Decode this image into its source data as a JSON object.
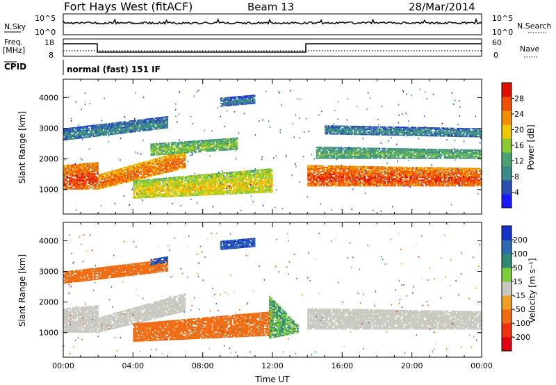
{
  "header": {
    "title": "Fort Hays West (fitACF)",
    "beam": "Beam 13",
    "date": "28/Mar/2014"
  },
  "status_panels": {
    "nsky_label": "N.Sky",
    "nsearch_label": "N.Search",
    "noise_ticks_top": "10^5",
    "noise_ticks_bottom": "10^0",
    "freq_label_1": "Freq.",
    "freq_label_2": "[MHz]",
    "freq_ticks": [
      "18",
      "8"
    ],
    "nave_label": "Nave",
    "nave_ticks": [
      "60",
      "0"
    ],
    "cpid_label": "CPID",
    "cpid_text": "normal (fast) 151 IF"
  },
  "colors": {
    "power_scale": [
      "#1a1aff",
      "#2850b4",
      "#3a8a8a",
      "#4aa070",
      "#8acc30",
      "#f0c800",
      "#f09000",
      "#f05000",
      "#e01000"
    ],
    "velocity_scale": [
      "#1432c8",
      "#2a6ab0",
      "#2e8a70",
      "#7ccc3c",
      "#c8c8c0",
      "#f0a020",
      "#f06a10",
      "#f03010",
      "#e00010"
    ]
  },
  "chart_data": [
    {
      "type": "heatmap",
      "name": "power",
      "ylabel": "Slant Range [km]",
      "yticks": [
        "4000",
        "3000",
        "2000",
        "1000"
      ],
      "ylim": [
        200,
        4600
      ],
      "xlim_hours": [
        0,
        24
      ],
      "colorbar_label": "Power [dB]",
      "colorbar_ticks": [
        "28",
        "24",
        "20",
        "16",
        "12",
        "8",
        "4"
      ],
      "colorbar_range": [
        0,
        32
      ],
      "bands": [
        {
          "hours": [
            0,
            2
          ],
          "range_lo": [
            1000,
            1000
          ],
          "range_hi": [
            1800,
            1900
          ],
          "power": 24
        },
        {
          "hours": [
            2,
            7
          ],
          "range_lo": [
            1000,
            1700
          ],
          "range_hi": [
            1500,
            2300
          ],
          "power": 22
        },
        {
          "hours": [
            4,
            12
          ],
          "range_lo": [
            700,
            900
          ],
          "range_hi": [
            1300,
            1700
          ],
          "power": 16
        },
        {
          "hours": [
            5,
            10
          ],
          "range_lo": [
            2100,
            2300
          ],
          "range_hi": [
            2500,
            2700
          ],
          "power": 12
        },
        {
          "hours": [
            0,
            6
          ],
          "range_lo": [
            2600,
            3000
          ],
          "range_hi": [
            3000,
            3400
          ],
          "power": 6
        },
        {
          "hours": [
            14,
            24
          ],
          "range_lo": [
            1100,
            1100
          ],
          "range_hi": [
            1800,
            1700
          ],
          "power": 24
        },
        {
          "hours": [
            14.5,
            24
          ],
          "range_lo": [
            2000,
            2000
          ],
          "range_hi": [
            2400,
            2300
          ],
          "power": 10
        },
        {
          "hours": [
            15,
            24
          ],
          "range_lo": [
            2800,
            2700
          ],
          "range_hi": [
            3100,
            3000
          ],
          "power": 6
        },
        {
          "hours": [
            9,
            11
          ],
          "range_lo": [
            3700,
            3800
          ],
          "range_hi": [
            4000,
            4100
          ],
          "power": 5
        }
      ]
    },
    {
      "type": "heatmap",
      "name": "velocity",
      "ylabel": "Slant Range [km]",
      "yticks": [
        "4000",
        "3000",
        "2000",
        "1000"
      ],
      "ylim": [
        200,
        4600
      ],
      "xlim_hours": [
        0,
        24
      ],
      "xticks": [
        "00:00",
        "04:00",
        "08:00",
        "12:00",
        "16:00",
        "20:00",
        "00:00"
      ],
      "xlabel": "Time UT",
      "colorbar_label": "Velocity [m s⁻¹]",
      "colorbar_ticks": [
        "200",
        "100",
        "50",
        "15",
        "-15",
        "-50",
        "-100",
        "-200"
      ],
      "bands": [
        {
          "hours": [
            0,
            2
          ],
          "range_lo": [
            1000,
            1000
          ],
          "range_hi": [
            1800,
            1900
          ],
          "velocity": 0
        },
        {
          "hours": [
            2,
            7
          ],
          "range_lo": [
            1000,
            1700
          ],
          "range_hi": [
            1500,
            2300
          ],
          "velocity": 0
        },
        {
          "hours": [
            4,
            12
          ],
          "range_lo": [
            700,
            900
          ],
          "range_hi": [
            1300,
            1700
          ],
          "velocity": -70
        },
        {
          "hours": [
            11.8,
            13.5
          ],
          "range_lo": [
            800,
            1000
          ],
          "range_hi": [
            2200,
            1200
          ],
          "velocity": 50
        },
        {
          "hours": [
            14,
            24
          ],
          "range_lo": [
            1100,
            1100
          ],
          "range_hi": [
            1800,
            1700
          ],
          "velocity": 0
        },
        {
          "hours": [
            0,
            6
          ],
          "range_lo": [
            2600,
            3000
          ],
          "range_hi": [
            3000,
            3400
          ],
          "velocity": -60
        },
        {
          "hours": [
            5,
            6
          ],
          "range_lo": [
            3200,
            3300
          ],
          "range_hi": [
            3400,
            3500
          ],
          "velocity": 200
        },
        {
          "hours": [
            9,
            11
          ],
          "range_lo": [
            3700,
            3800
          ],
          "range_hi": [
            4000,
            4100
          ],
          "velocity": 200
        }
      ]
    }
  ]
}
